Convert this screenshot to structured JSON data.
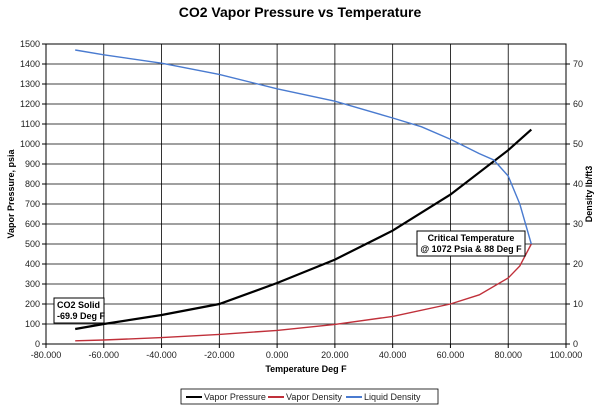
{
  "chart_data": {
    "type": "line",
    "title": "CO2 Vapor Pressure vs Temperature",
    "xlabel": "Temperature Deg F",
    "ylabel": "Vapor Pressure, psia",
    "y2label": "Density lb/ft3",
    "xlim": [
      -80,
      100
    ],
    "ylim": [
      0,
      1500
    ],
    "y2lim": [
      0,
      75
    ],
    "xticks": [
      "-80.000",
      "-60.000",
      "-40.000",
      "-20.000",
      "0.000",
      "20.000",
      "40.000",
      "60.000",
      "80.000",
      "100.000"
    ],
    "yticks": [
      "0",
      "100",
      "200",
      "300",
      "400",
      "500",
      "600",
      "700",
      "800",
      "900",
      "1000",
      "1100",
      "1200",
      "1300",
      "1400",
      "1500"
    ],
    "y2ticks": [
      "0",
      "10",
      "20",
      "30",
      "40",
      "50",
      "60",
      "70"
    ],
    "grid": true,
    "legend_position": "bottom",
    "series": [
      {
        "name": "Vapor Pressure",
        "axis": "left",
        "color": "#000000",
        "x": [
          -69.9,
          -60,
          -40,
          -20,
          0,
          20,
          40,
          60,
          80,
          88
        ],
        "y": [
          75,
          100,
          145,
          200,
          305,
          422,
          567,
          747,
          969,
          1072
        ]
      },
      {
        "name": "Vapor Density",
        "axis": "right",
        "color": "#c0303a",
        "x": [
          -69.9,
          -60,
          -40,
          -20,
          0,
          20,
          40,
          60,
          70,
          80,
          84,
          88
        ],
        "y": [
          0.8,
          1.0,
          1.6,
          2.4,
          3.4,
          4.9,
          6.9,
          10,
          12.3,
          16.5,
          19.5,
          25
        ]
      },
      {
        "name": "Liquid Density",
        "axis": "right",
        "color": "#4a7bd0",
        "x": [
          -69.9,
          -60,
          -40,
          -20,
          0,
          20,
          40,
          50,
          60,
          70,
          75,
          80,
          84,
          88
        ],
        "y": [
          73.5,
          72.3,
          70.2,
          67.4,
          63.8,
          60.7,
          56.5,
          54.3,
          51.2,
          47.6,
          46,
          42,
          35,
          25
        ]
      }
    ],
    "annotations": [
      {
        "text": [
          "CO2 Solid",
          "-69.9 Deg F"
        ]
      },
      {
        "text": [
          "Critical Temperature",
          "@ 1072 Psia & 88 Deg F"
        ]
      }
    ]
  }
}
